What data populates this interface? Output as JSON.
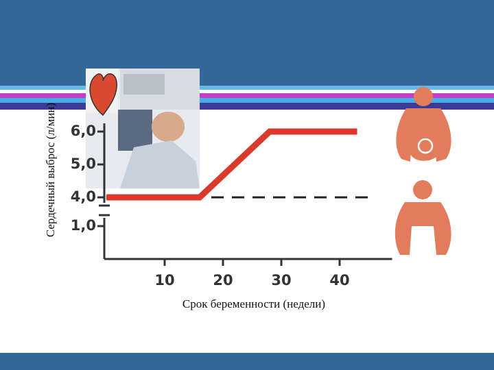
{
  "chart_data": {
    "type": "line",
    "y_label": "Сердечный выброс (л/мин)",
    "x_label": "Срок беременности (недели)",
    "xlim": [
      0,
      49
    ],
    "xticks": [
      10,
      20,
      30,
      40
    ],
    "ylim": [
      0,
      6
    ],
    "yticks": [
      {
        "value": 6,
        "label": "6,0"
      },
      {
        "value": 5,
        "label": "5,0"
      },
      {
        "value": 4,
        "label": "4,0"
      },
      {
        "value": 1,
        "label": "1,0"
      }
    ],
    "axis_break": [
      1,
      4
    ],
    "series": [
      {
        "color": "#d93a2b",
        "style": "solid",
        "x": [
          0,
          16,
          28,
          43
        ],
        "values": [
          4,
          4,
          6,
          6
        ]
      },
      {
        "color": "#222222",
        "style": "dashed",
        "x": [
          18,
          45
        ],
        "values": [
          4,
          4
        ]
      }
    ]
  }
}
